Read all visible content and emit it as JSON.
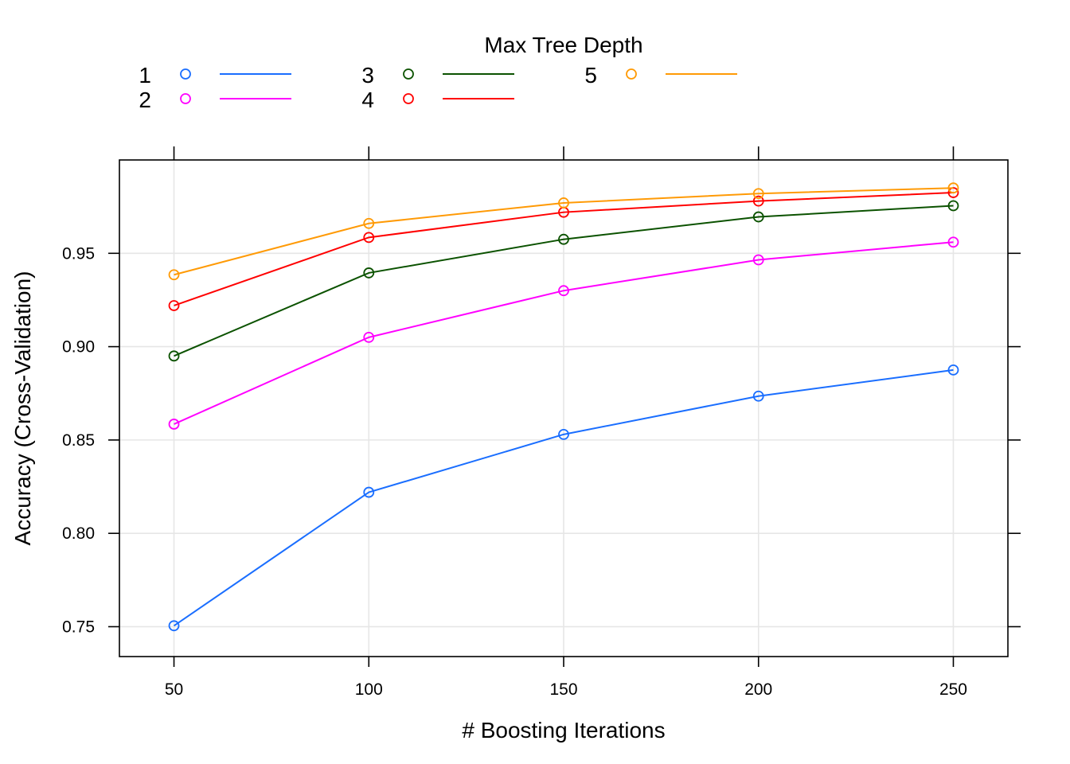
{
  "chart_data": {
    "type": "line",
    "legend_title": "Max Tree Depth",
    "legend_placement": "top",
    "xlabel": "# Boosting Iterations",
    "ylabel": "Accuracy (Cross-Validation)",
    "x": [
      50,
      100,
      150,
      200,
      250
    ],
    "x_ticks": [
      "50",
      "100",
      "150",
      "200",
      "250"
    ],
    "y_ticks": [
      "0.75",
      "0.80",
      "0.85",
      "0.90",
      "0.95"
    ],
    "xlim": [
      36,
      264
    ],
    "ylim": [
      0.734,
      1.0
    ],
    "grid": true,
    "series": [
      {
        "name": "1",
        "color": "#1a6eff",
        "values": [
          0.7505,
          0.822,
          0.853,
          0.8735,
          0.8875
        ]
      },
      {
        "name": "2",
        "color": "#ff00ff",
        "values": [
          0.8585,
          0.905,
          0.93,
          0.9465,
          0.956
        ]
      },
      {
        "name": "3",
        "color": "#0b5200",
        "values": [
          0.895,
          0.9395,
          0.9575,
          0.9695,
          0.9755
        ]
      },
      {
        "name": "4",
        "color": "#ff0000",
        "values": [
          0.922,
          0.9585,
          0.972,
          0.978,
          0.9825
        ]
      },
      {
        "name": "5",
        "color": "#ff9a05",
        "values": [
          0.9385,
          0.966,
          0.977,
          0.982,
          0.985
        ]
      }
    ]
  }
}
